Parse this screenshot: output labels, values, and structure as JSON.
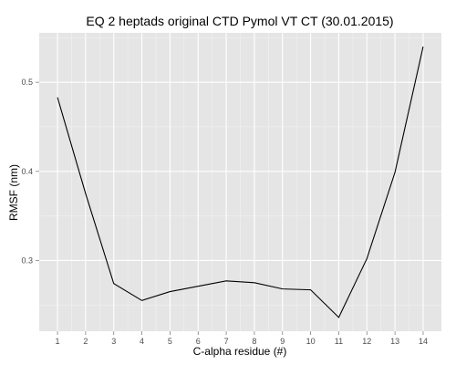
{
  "chart_data": {
    "type": "line",
    "title": "EQ 2 heptads original CTD Pymol VT CT (30.01.2015)",
    "xlabel": "C-alpha residue (#)",
    "ylabel": "RMSF (nm)",
    "x": [
      1,
      2,
      3,
      4,
      5,
      6,
      7,
      8,
      9,
      10,
      11,
      12,
      13,
      14
    ],
    "series": [
      {
        "values": [
          0.483,
          0.375,
          0.274,
          0.255,
          0.265,
          0.271,
          0.277,
          0.275,
          0.268,
          0.267,
          0.236,
          0.302,
          0.399,
          0.54
        ]
      }
    ],
    "xticks": [
      "1",
      "2",
      "3",
      "4",
      "5",
      "6",
      "7",
      "8",
      "9",
      "10",
      "11",
      "12",
      "13",
      "14"
    ],
    "yticks": [
      "0.3",
      "0.4",
      "0.5"
    ],
    "xlim": [
      0.35,
      14.65
    ],
    "ylim": [
      0.2205,
      0.5555
    ],
    "grid": true,
    "colors": {
      "panel": "#e5e5e5",
      "grid_major": "#ffffff",
      "grid_minor": "#f2f2f2",
      "line": "#000000",
      "tick": "#7f7f7f"
    }
  }
}
